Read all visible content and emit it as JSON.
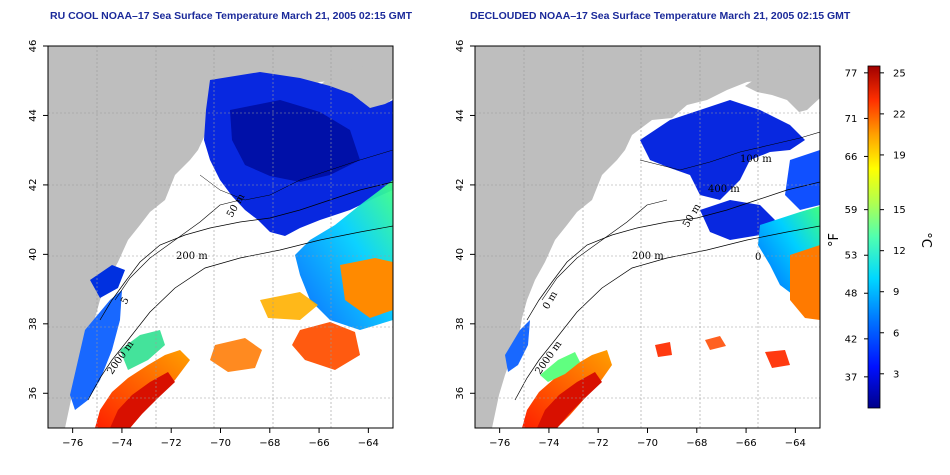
{
  "panels": [
    {
      "title": "RU COOL NOAA–17 Sea Surface Temperature March 21, 2005 02:15 GMT",
      "contour_labels": [
        "200 m",
        "50 m",
        "2000 m",
        "5"
      ]
    },
    {
      "title": "DECLOUDED NOAA–17 Sea Surface Temperature March 21, 2005 02:15 GMT",
      "contour_labels": [
        "100 m",
        "400 m",
        "50 m",
        "200 m",
        "0 m",
        "2000 m",
        "0"
      ]
    }
  ],
  "axes": {
    "x_ticks": [
      -76,
      -74,
      -72,
      -70,
      -68,
      -66,
      -64
    ],
    "y_ticks": [
      36,
      38,
      40,
      42,
      44,
      46
    ],
    "x_range": [
      -77,
      -63
    ],
    "y_range": [
      35,
      46
    ]
  },
  "colorbar": {
    "fahrenheit_ticks": [
      77,
      71,
      66,
      59,
      53,
      48,
      42,
      37
    ],
    "celsius_ticks": [
      25,
      22,
      19,
      15,
      12,
      9,
      6,
      3
    ],
    "fahrenheit_unit": "°F",
    "celsius_unit": "°C",
    "colors": [
      "#00008a",
      "#0000ff",
      "#0080ff",
      "#00e0ff",
      "#40ffc0",
      "#a0ff60",
      "#ffff00",
      "#ffa000",
      "#ff3000",
      "#a00000"
    ]
  },
  "colors": {
    "land": "#bebebe",
    "title": "#1b2a9a"
  }
}
